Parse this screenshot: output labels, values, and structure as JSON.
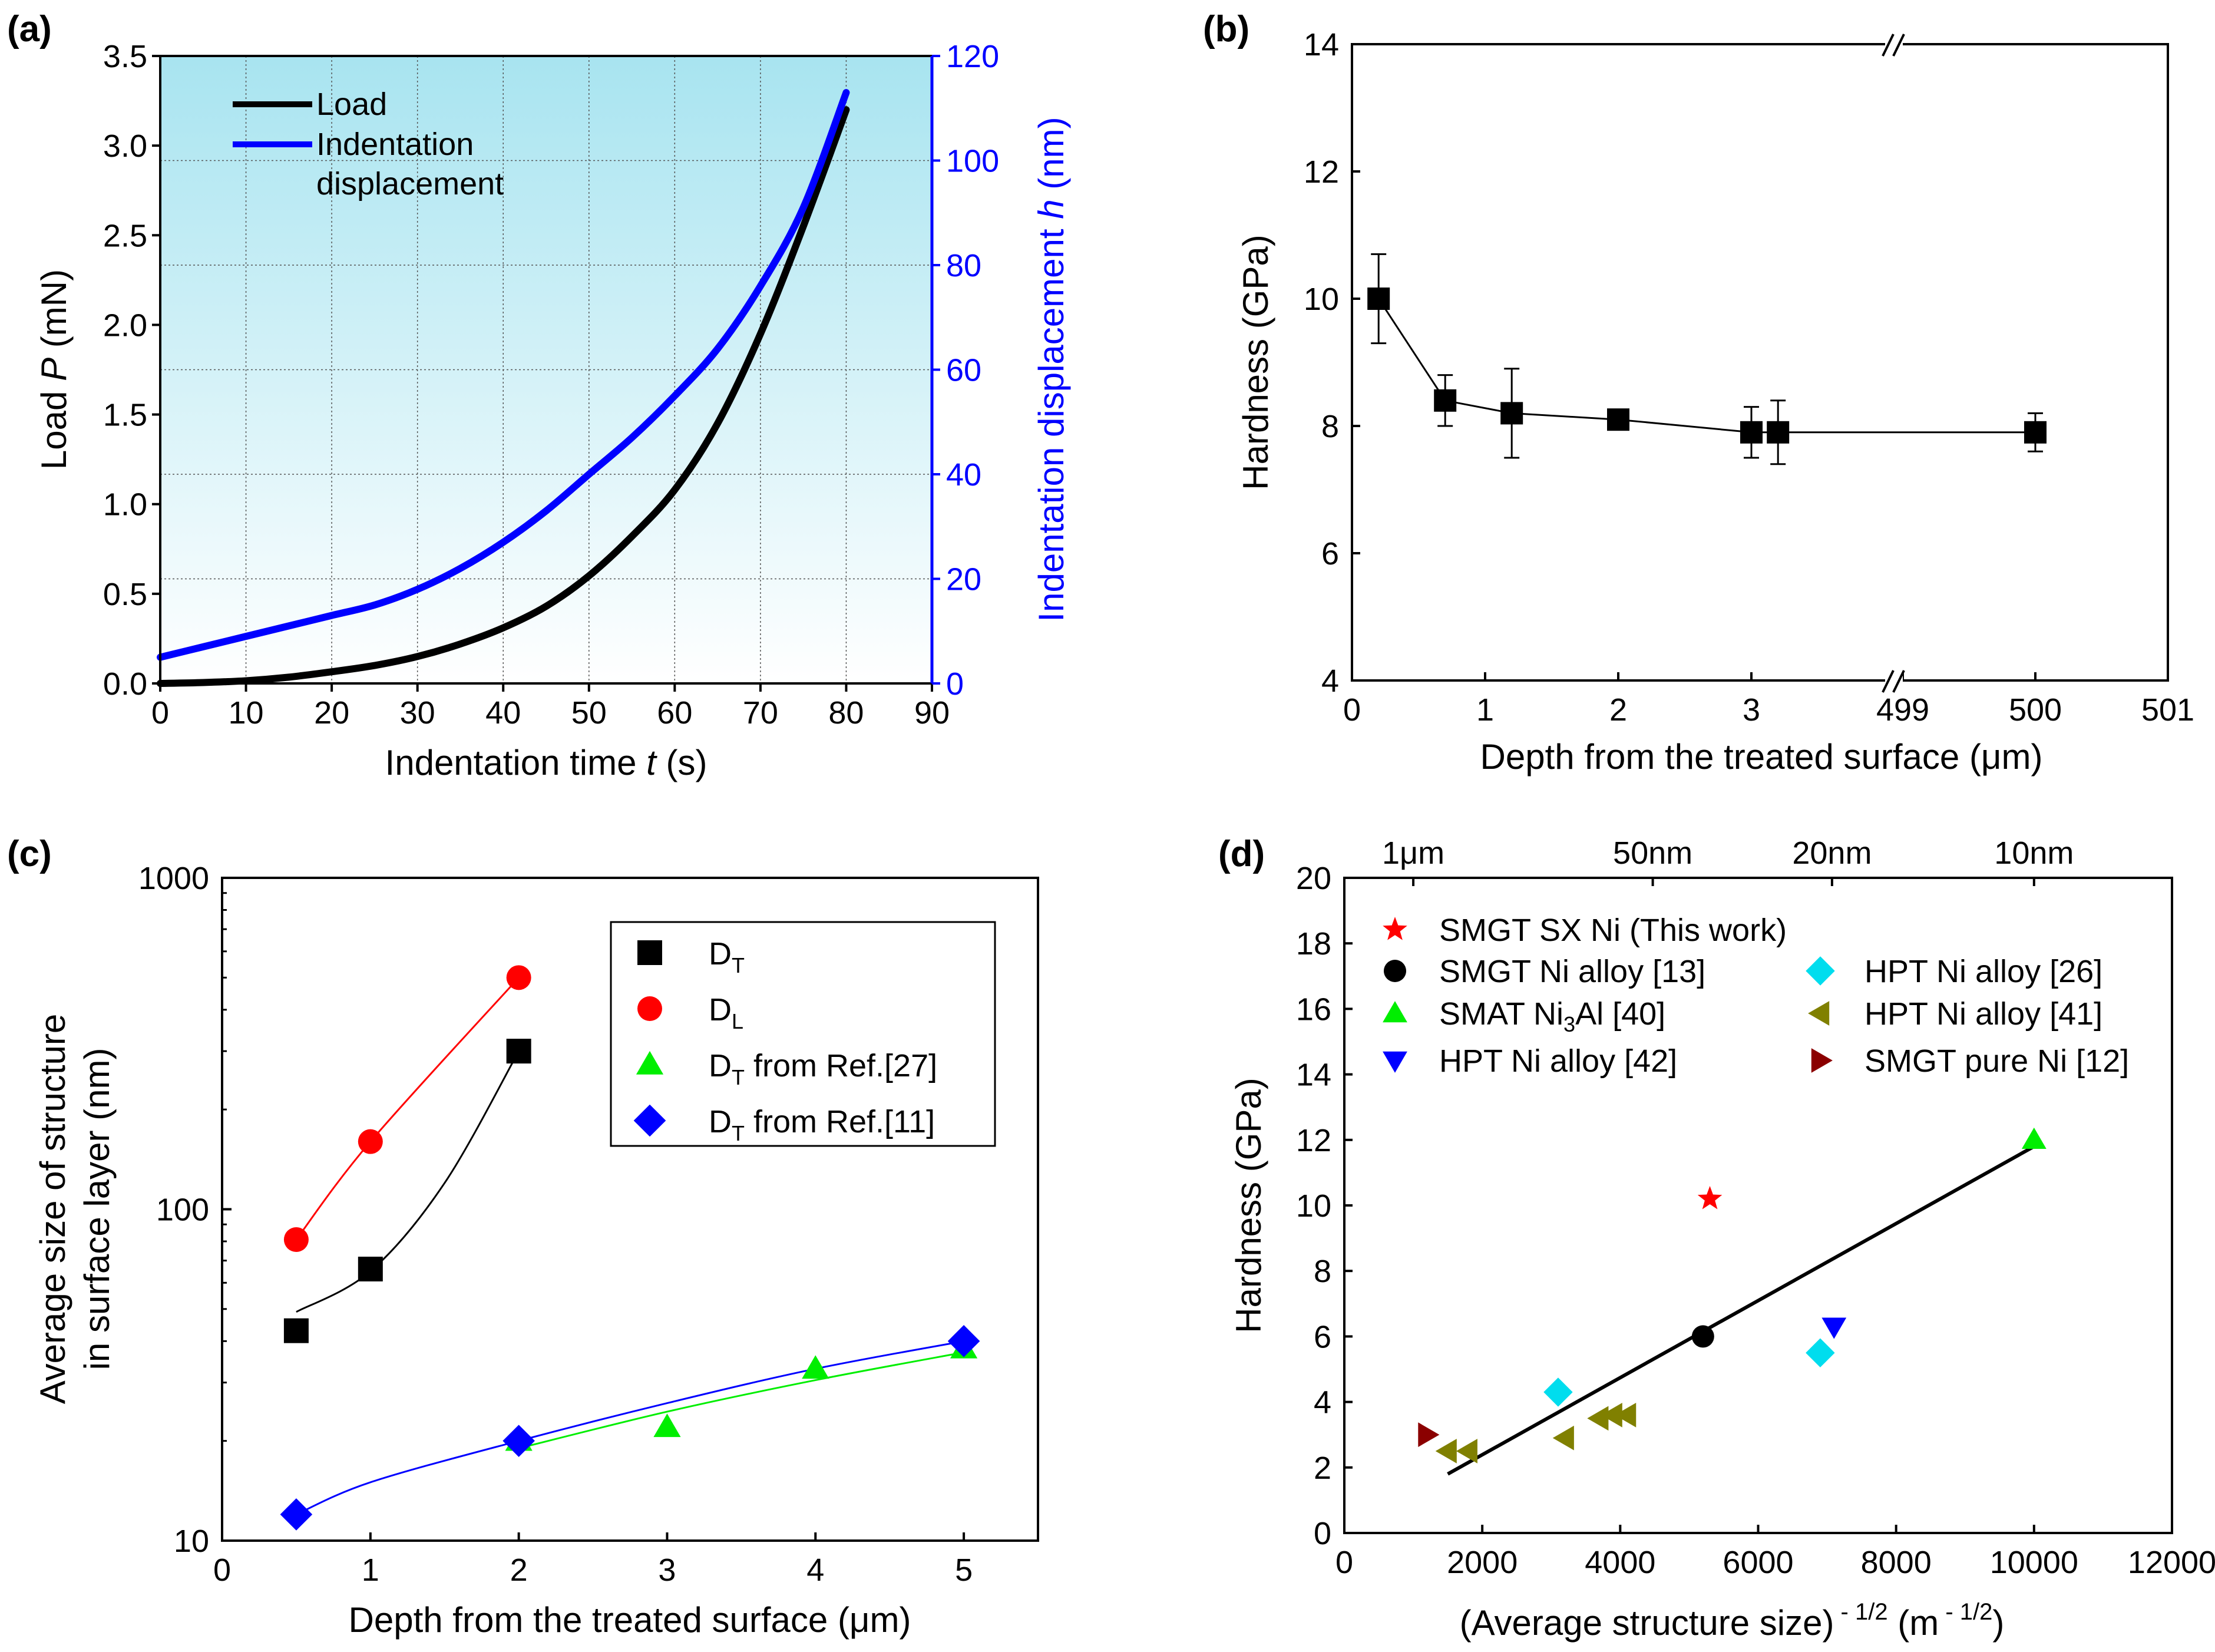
{
  "chart_data": [
    {
      "panel": "(a)",
      "type": "line",
      "xlabel": "Indentation time t (s)",
      "xlabel_parts": [
        "Indentation time ",
        "t",
        " (s)"
      ],
      "ylabel": "Load P (mN)",
      "ylabel_parts": [
        "Load ",
        "P",
        " (mN)"
      ],
      "y2label": "Indentation displacement h (nm)",
      "y2label_parts": [
        "Indentation displacement ",
        "h",
        " (nm)"
      ],
      "xlim": [
        0,
        90
      ],
      "ylim": [
        0,
        3.5
      ],
      "y2lim": [
        0,
        120
      ],
      "xticks": [
        "0",
        "10",
        "20",
        "30",
        "40",
        "50",
        "60",
        "70",
        "80",
        "90"
      ],
      "yticks": [
        "0.0",
        "0.5",
        "1.0",
        "1.5",
        "2.0",
        "2.5",
        "3.0",
        "3.5"
      ],
      "y2ticks": [
        "0",
        "20",
        "40",
        "60",
        "80",
        "100",
        "120"
      ],
      "legend": [
        "Load",
        "Indentation",
        "displacement"
      ],
      "background": "light cyan gradient",
      "series": [
        {
          "name": "Load",
          "axis": "left",
          "color": "#000000",
          "x": [
            0,
            5,
            10,
            15,
            20,
            25,
            30,
            35,
            40,
            45,
            50,
            55,
            60,
            65,
            70,
            75,
            80
          ],
          "y": [
            0,
            0.005,
            0.015,
            0.035,
            0.065,
            0.1,
            0.15,
            0.22,
            0.31,
            0.43,
            0.6,
            0.82,
            1.08,
            1.45,
            1.95,
            2.55,
            3.2
          ]
        },
        {
          "name": "Indentation displacement",
          "axis": "right",
          "color": "#0000ff",
          "x": [
            0,
            5,
            10,
            15,
            20,
            25,
            30,
            35,
            40,
            45,
            50,
            55,
            60,
            65,
            70,
            75,
            80
          ],
          "y": [
            5,
            7,
            9,
            11,
            13,
            15,
            18,
            22,
            27,
            33,
            40,
            47,
            55,
            64,
            76,
            91,
            113
          ]
        }
      ]
    },
    {
      "panel": "(b)",
      "type": "scatter",
      "xlabel": "Depth from the treated surface (μm)",
      "ylabel": "Hardness (GPa)",
      "ylim": [
        4,
        14
      ],
      "xticks": [
        "0",
        "1",
        "2",
        "3",
        "499",
        "500",
        "501"
      ],
      "yticks": [
        "4",
        "6",
        "8",
        "10",
        "12",
        "14"
      ],
      "axis_break": "between 3 and 499",
      "series": [
        {
          "name": "Hardness",
          "x": [
            0.2,
            0.7,
            1.2,
            2,
            3,
            3.2,
            500
          ],
          "y": [
            10,
            8.4,
            8.2,
            8.1,
            7.9,
            7.9,
            7.9
          ],
          "err": [
            0.7,
            0.4,
            0.7,
            0.15,
            0.4,
            0.5,
            0.3
          ]
        }
      ]
    },
    {
      "panel": "(c)",
      "type": "scatter",
      "xlabel": "Depth from the treated surface (μm)",
      "ylabel_lines": [
        "Average size of structure",
        "in surface layer (nm)"
      ],
      "yscale": "log",
      "xlim": [
        0,
        5.5
      ],
      "ylim": [
        10,
        1000
      ],
      "xticks": [
        "0",
        "1",
        "2",
        "3",
        "4",
        "5"
      ],
      "yticks": [
        "10",
        "100",
        "1000"
      ],
      "series": [
        {
          "name": "DT",
          "label": "D",
          "sub": "T",
          "suffix": "",
          "marker": "square",
          "color": "#000000",
          "x": [
            0.5,
            1,
            2
          ],
          "y": [
            43,
            66,
            300
          ]
        },
        {
          "name": "DL",
          "label": "D",
          "sub": "L",
          "suffix": "",
          "marker": "circle",
          "color": "#ff0000",
          "x": [
            0.5,
            1,
            2
          ],
          "y": [
            81,
            160,
            500
          ]
        },
        {
          "name": "DT from Ref.[27]",
          "label": "D",
          "sub": "T",
          "suffix": " from Ref.[27]",
          "marker": "triangle",
          "color": "#00ee00",
          "x": [
            2,
            3,
            4,
            5
          ],
          "y": [
            20,
            22,
            33,
            38
          ]
        },
        {
          "name": "DT from Ref.[11]",
          "label": "D",
          "sub": "T",
          "suffix": " from Ref.[11]",
          "marker": "diamond",
          "color": "#0000ff",
          "x": [
            0.5,
            2,
            5
          ],
          "y": [
            12,
            20,
            40
          ]
        }
      ],
      "fit_lines": [
        {
          "color": "#ff0000",
          "x": [
            0.5,
            1,
            2
          ],
          "y": [
            81,
            160,
            500
          ]
        },
        {
          "color": "#000000",
          "x": [
            0.5,
            1,
            1.5,
            2
          ],
          "y": [
            49,
            65,
            120,
            300
          ]
        },
        {
          "color": "#00ee00",
          "x": [
            2,
            3,
            4,
            5
          ],
          "y": [
            19,
            24.5,
            30.5,
            37
          ]
        },
        {
          "color": "#0000ff",
          "x": [
            0.5,
            1,
            2,
            3,
            4,
            5
          ],
          "y": [
            12,
            15,
            20,
            26,
            33,
            40
          ]
        }
      ]
    },
    {
      "panel": "(d)",
      "type": "scatter",
      "xlabel_parts": [
        "(Average structure size)",
        " - 1/2",
        " (m",
        " - 1/2",
        ")"
      ],
      "ylabel": "Hardness (GPa)",
      "xlim": [
        0,
        12000
      ],
      "ylim": [
        0,
        20
      ],
      "xticks": [
        "0",
        "2000",
        "4000",
        "6000",
        "8000",
        "10000",
        "12000"
      ],
      "yticks": [
        "0",
        "2",
        "4",
        "6",
        "8",
        "10",
        "12",
        "14",
        "16",
        "18",
        "20"
      ],
      "top_ticks": [
        {
          "label": "1μm",
          "value": 1000
        },
        {
          "label": "50nm",
          "value": 4472
        },
        {
          "label": "20nm",
          "value": 7071
        },
        {
          "label": "10nm",
          "value": 10000
        }
      ],
      "series": [
        {
          "name": "SMGT SX Ni (This work)",
          "marker": "star",
          "color": "#ff0000",
          "x": [
            5300
          ],
          "y": [
            10.2
          ]
        },
        {
          "name": "SMGT Ni alloy [13]",
          "marker": "circle",
          "color": "#000000",
          "x": [
            5200
          ],
          "y": [
            6
          ]
        },
        {
          "name": "SMAT Ni3Al [40]",
          "label": "SMAT Ni",
          "sub": "3",
          "suffix": "Al [40]",
          "marker": "triangle-up",
          "color": "#00ee00",
          "x": [
            10000
          ],
          "y": [
            12
          ]
        },
        {
          "name": "HPT Ni alloy [42]",
          "marker": "triangle-down",
          "color": "#0000ff",
          "x": [
            7100
          ],
          "y": [
            6.3
          ]
        },
        {
          "name": "HPT Ni alloy [26]",
          "marker": "diamond",
          "color": "#00ddee",
          "x": [
            3100,
            6900
          ],
          "y": [
            4.3,
            5.5
          ]
        },
        {
          "name": "HPT Ni alloy [41]",
          "marker": "triangle-left",
          "color": "#808000",
          "x": [
            1500,
            1800,
            3200,
            3700,
            3900,
            4100
          ],
          "y": [
            2.5,
            2.5,
            2.9,
            3.5,
            3.6,
            3.6
          ]
        },
        {
          "name": "SMGT pure Ni [12]",
          "marker": "triangle-right",
          "color": "#8b0000",
          "x": [
            1200
          ],
          "y": [
            3
          ]
        }
      ],
      "fit_line": {
        "x": [
          1500,
          10000
        ],
        "y": [
          1.8,
          11.8
        ],
        "color": "#000000"
      }
    }
  ]
}
